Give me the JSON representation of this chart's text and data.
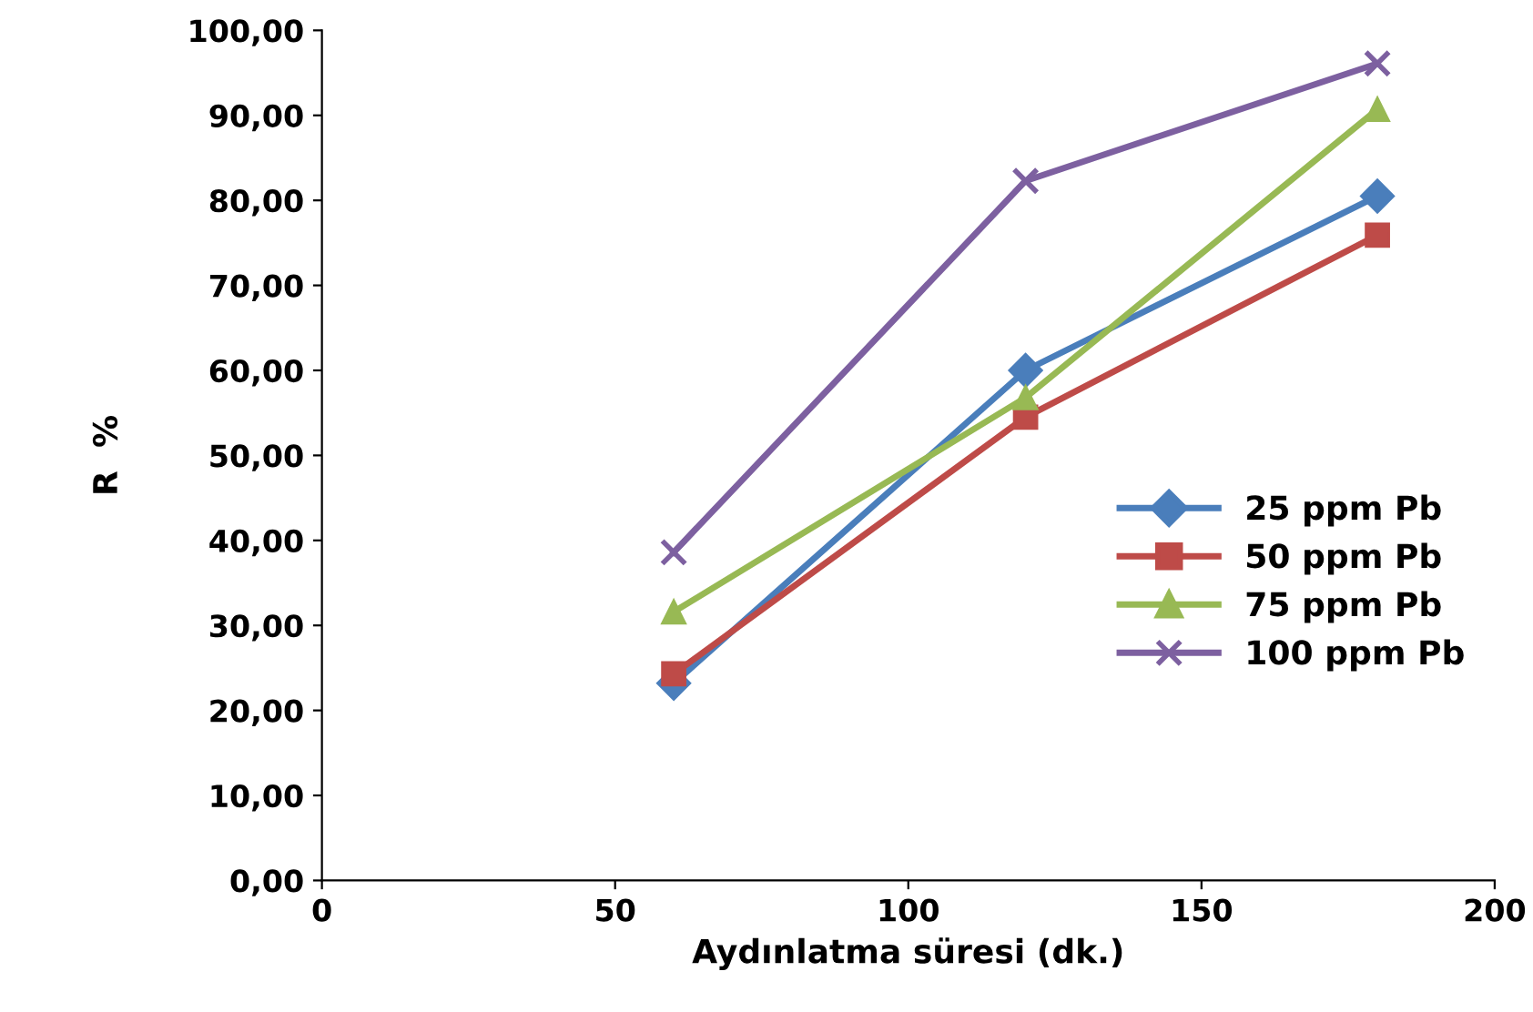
{
  "chart_data": {
    "type": "line",
    "xlabel": "Aydınlatma süresi (dk.)",
    "ylabel": "R  %",
    "xlim": [
      0,
      200
    ],
    "xticks": [
      0,
      50,
      100,
      150,
      200
    ],
    "ylim": [
      0,
      100
    ],
    "yticks": [
      {
        "value": 0,
        "label": "0,00"
      },
      {
        "value": 10,
        "label": "10,00"
      },
      {
        "value": 20,
        "label": "20,00"
      },
      {
        "value": 30,
        "label": "30,00"
      },
      {
        "value": 40,
        "label": "40,00"
      },
      {
        "value": 50,
        "label": "50,00"
      },
      {
        "value": 60,
        "label": "60,00"
      },
      {
        "value": 70,
        "label": "70,00"
      },
      {
        "value": 80,
        "label": "80,00"
      },
      {
        "value": 90,
        "label": "90,00"
      },
      {
        "value": 100,
        "label": "100,00"
      }
    ],
    "x": [
      60,
      120,
      180
    ],
    "grid": false,
    "legend": "right",
    "line_style": "solid",
    "series": [
      {
        "name": "25 ppm Pb",
        "color": "#4a7ebb",
        "marker": "diamond",
        "values": [
          23.2,
          60.0,
          80.5
        ]
      },
      {
        "name": "50 ppm Pb",
        "color": "#be4b48",
        "marker": "square",
        "values": [
          24.3,
          54.5,
          75.9
        ]
      },
      {
        "name": "75 ppm Pb",
        "color": "#98b954",
        "marker": "triangle",
        "values": [
          31.6,
          56.8,
          90.7
        ]
      },
      {
        "name": "100 ppm Pb",
        "color": "#7d60a0",
        "marker": "cross",
        "values": [
          38.6,
          82.3,
          96.1
        ]
      }
    ]
  }
}
